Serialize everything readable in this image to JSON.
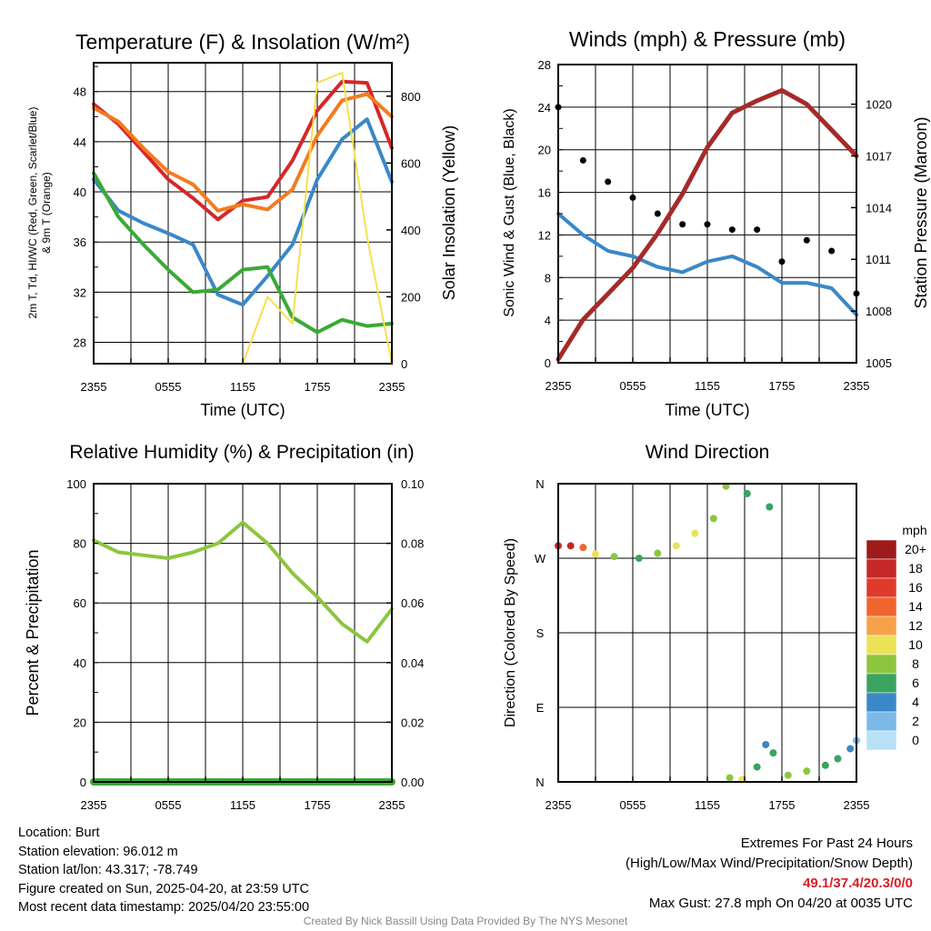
{
  "charts": {
    "temp": {
      "title": "Temperature (F) & Insolation (W/m²)",
      "ylabel_left_line1": "2m T, Td, HI/WC (Red, Green, Scarlet/Blue)",
      "ylabel_left_line2": "& 9m T (Orange)",
      "ylabel_right": "Solar Insolation (Yellow)",
      "xlabel": "Time (UTC)"
    },
    "wind": {
      "title": "Winds (mph) & Pressure (mb)",
      "ylabel_left": "Sonic Wind & Gust (Blue, Black)",
      "ylabel_right": "Station Pressure (Maroon)",
      "xlabel": "Time (UTC)"
    },
    "rh": {
      "title": "Relative Humidity (%) & Precipitation (in)",
      "ylabel_left": "Percent & Precipitation"
    },
    "dir": {
      "title": "Wind Direction",
      "ylabel_left": "Direction (Colored By Speed)",
      "colorbar_title": "mph"
    }
  },
  "chart_data": [
    {
      "id": "temp",
      "type": "line",
      "title": "Temperature (F) & Insolation (W/m²)",
      "xlabel": "Time (UTC)",
      "x_ticks": [
        "2355",
        "0555",
        "1155",
        "1755",
        "2355"
      ],
      "x": [
        0,
        2,
        4,
        6,
        8,
        10,
        12,
        14,
        16,
        18,
        20,
        22,
        24
      ],
      "ylim": [
        26.3,
        50.3
      ],
      "y_ticks": [
        28,
        32,
        36,
        40,
        44,
        48
      ],
      "ylim_right": [
        0,
        900
      ],
      "y_ticks_right": [
        0,
        200,
        400,
        600,
        800
      ],
      "grid": true,
      "series": [
        {
          "color": "#d62728",
          "axis": "left",
          "values": [
            47.0,
            45.4,
            43.2,
            41.0,
            39.5,
            37.8,
            39.3,
            39.6,
            42.5,
            46.5,
            48.8,
            48.7,
            43.5
          ]
        },
        {
          "color": "#f47b20",
          "axis": "left",
          "values": [
            46.7,
            45.6,
            43.5,
            41.6,
            40.6,
            38.5,
            39.0,
            38.6,
            40.2,
            44.5,
            47.3,
            47.8,
            46.0
          ]
        },
        {
          "color": "#3a88c8",
          "axis": "left",
          "values": [
            41.0,
            38.5,
            37.5,
            36.7,
            35.8,
            31.8,
            31.0,
            33.3,
            35.8,
            41.0,
            44.2,
            45.8,
            40.8
          ]
        },
        {
          "color": "#3aaa35",
          "axis": "left",
          "values": [
            41.5,
            38.0,
            35.8,
            33.8,
            32.0,
            32.2,
            33.8,
            34.0,
            30.0,
            28.8,
            29.8,
            29.3,
            29.5
          ]
        },
        {
          "color": "#f5e050",
          "axis": "right",
          "values": [
            0,
            0,
            0,
            0,
            0,
            0,
            0,
            200,
            120,
            840,
            870,
            380,
            0
          ]
        }
      ]
    },
    {
      "id": "wind",
      "type": "line",
      "title": "Winds (mph) & Pressure (mb)",
      "xlabel": "Time (UTC)",
      "x_ticks": [
        "2355",
        "0555",
        "1155",
        "1755",
        "2355"
      ],
      "x": [
        0,
        2,
        4,
        6,
        8,
        10,
        12,
        14,
        16,
        18,
        20,
        22,
        24
      ],
      "ylim": [
        0,
        28
      ],
      "y_ticks": [
        0,
        4,
        8,
        12,
        16,
        20,
        24,
        28
      ],
      "ylim_right": [
        1005,
        1022.3
      ],
      "y_ticks_right": [
        1005,
        1008,
        1011,
        1014,
        1017,
        1020
      ],
      "grid": true,
      "series": [
        {
          "color": "#3a88c8",
          "axis": "left",
          "values": [
            14.0,
            12.0,
            10.5,
            10.0,
            9.0,
            8.5,
            9.5,
            10.0,
            9.0,
            7.5,
            7.5,
            7.0,
            4.5
          ]
        },
        {
          "color": "#000000",
          "axis": "left",
          "marker": "dot",
          "values": [
            24.0,
            19.0,
            17.0,
            15.5,
            14.0,
            13.0,
            13.0,
            12.5,
            12.5,
            9.5,
            11.5,
            10.5,
            6.5
          ]
        },
        {
          "color": "#a52a2a",
          "axis": "right",
          "values": [
            1005.2,
            1007.5,
            1009.0,
            1010.5,
            1012.5,
            1014.8,
            1017.5,
            1019.5,
            1020.2,
            1020.8,
            1020.0,
            1018.5,
            1017.0
          ]
        }
      ]
    },
    {
      "id": "rh",
      "type": "line",
      "title": "Relative Humidity (%) & Precipitation (in)",
      "x_ticks": [
        "2355",
        "0555",
        "1155",
        "1755",
        "2355"
      ],
      "x": [
        0,
        2,
        4,
        6,
        8,
        10,
        12,
        14,
        16,
        18,
        20,
        22,
        24
      ],
      "ylim": [
        0,
        100
      ],
      "y_ticks": [
        0,
        20,
        40,
        60,
        80,
        100
      ],
      "ylim_right": [
        0,
        0.1
      ],
      "y_ticks_right": [
        "0.00",
        "0.02",
        "0.04",
        "0.06",
        "0.08",
        "0.10"
      ],
      "grid": true,
      "series": [
        {
          "color": "#8cc63f",
          "axis": "left",
          "values": [
            81,
            77,
            76,
            75,
            77,
            80,
            87,
            80,
            70,
            62,
            53,
            47,
            58
          ]
        },
        {
          "color": "#3aaa35",
          "axis": "right",
          "values": [
            0,
            0,
            0,
            0,
            0,
            0,
            0,
            0,
            0,
            0,
            0,
            0,
            0
          ]
        }
      ]
    },
    {
      "id": "dir",
      "type": "scatter",
      "title": "Wind Direction",
      "x_ticks": [
        "2355",
        "0555",
        "1155",
        "1755",
        "2355"
      ],
      "y_ticks": [
        "N",
        "E",
        "S",
        "W",
        "N"
      ],
      "ylim": [
        0,
        360
      ],
      "grid": true,
      "points": [
        {
          "x": 0.0,
          "dir": 285,
          "speed": 19
        },
        {
          "x": 1.0,
          "dir": 285,
          "speed": 18
        },
        {
          "x": 2.0,
          "dir": 283,
          "speed": 14
        },
        {
          "x": 3.0,
          "dir": 275,
          "speed": 11
        },
        {
          "x": 4.5,
          "dir": 272,
          "speed": 9
        },
        {
          "x": 6.5,
          "dir": 270,
          "speed": 7
        },
        {
          "x": 8.0,
          "dir": 276,
          "speed": 9
        },
        {
          "x": 9.5,
          "dir": 285,
          "speed": 10
        },
        {
          "x": 11.0,
          "dir": 300,
          "speed": 11
        },
        {
          "x": 12.5,
          "dir": 318,
          "speed": 8
        },
        {
          "x": 13.5,
          "dir": 357,
          "speed": 8
        },
        {
          "x": 15.2,
          "dir": 348,
          "speed": 6
        },
        {
          "x": 17.0,
          "dir": 332,
          "speed": 6
        },
        {
          "x": 13.8,
          "dir": 5,
          "speed": 9
        },
        {
          "x": 14.8,
          "dir": 3,
          "speed": 10
        },
        {
          "x": 16.0,
          "dir": 18,
          "speed": 7
        },
        {
          "x": 16.7,
          "dir": 45,
          "speed": 5
        },
        {
          "x": 17.3,
          "dir": 35,
          "speed": 6
        },
        {
          "x": 18.5,
          "dir": 8,
          "speed": 8
        },
        {
          "x": 20.0,
          "dir": 13,
          "speed": 8
        },
        {
          "x": 21.5,
          "dir": 20,
          "speed": 7
        },
        {
          "x": 22.5,
          "dir": 28,
          "speed": 6
        },
        {
          "x": 23.5,
          "dir": 40,
          "speed": 4
        },
        {
          "x": 24.0,
          "dir": 50,
          "speed": 3
        }
      ]
    }
  ],
  "colorbar": {
    "labels": [
      "20+",
      "18",
      "16",
      "14",
      "12",
      "10",
      "8",
      "6",
      "4",
      "2",
      "0"
    ],
    "colors": [
      "#9e1b1b",
      "#c62828",
      "#e03a2a",
      "#f06430",
      "#f7a24a",
      "#ece257",
      "#8cc63f",
      "#3aa35f",
      "#3a88c8",
      "#7cb9e8",
      "#b8e0f7"
    ]
  },
  "station": {
    "location": "Location: Burt",
    "elevation": "Station elevation: 96.012 m",
    "latlon": "Station lat/lon: 43.317; -78.749",
    "created": "Figure created on Sun, 2025-04-20, at 23:59 UTC",
    "recent": "Most recent data timestamp: 2025/04/20 23:55:00"
  },
  "extremes": {
    "title": "Extremes For Past 24 Hours",
    "legend": "(High/Low/Max Wind/Precipitation/Snow Depth)",
    "values": "49.1/37.4/20.3/0/0",
    "gust": "Max Gust: 27.8 mph On 04/20 at 0035 UTC"
  },
  "credit": "Created By Nick Bassill Using Data Provided By The NYS Mesonet"
}
